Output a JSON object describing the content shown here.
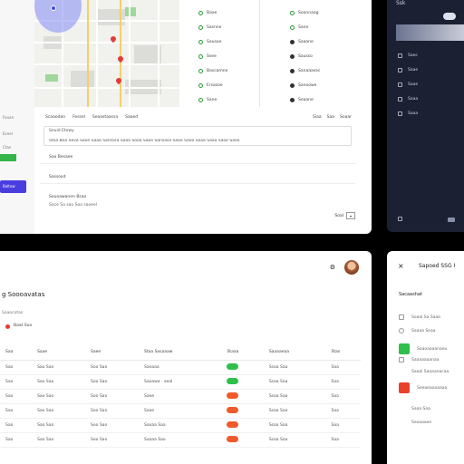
{
  "top_left": {
    "left_strip": {
      "label_1": "Fouan",
      "label_2": "Eceel",
      "label_3": "Ctan",
      "button": "Baltow"
    },
    "map": {
      "description_icon": "map-icon"
    },
    "list_a": [
      "Baae",
      "Sasnne",
      "Sausoe",
      "Ssee",
      "Bascamne",
      "Ersasoe",
      "Sane"
    ],
    "list_b": [
      "Soonnaag",
      "Sane",
      "Saaane",
      "Sausso",
      "Sanaaasec",
      "Sanoowe",
      "Seaane"
    ],
    "form": {
      "tabs": [
        "Scaaodan",
        "Fessel",
        "Seaastaassa",
        "Saaed"
      ],
      "tabs_right": [
        "Siaa",
        "Saa",
        "Soaar"
      ],
      "box_label": "Seuid Etowy",
      "box_text": "Stoa Boa Seva Saoe Saaa Sansara Saaa Sooa Saoo Sansasa Saoo Saoo Saaa Saaa Saoo Saoo",
      "section_1": "Sao Besaee",
      "section_2": "Sassoxd",
      "section_3_title": "Seuoawanen Bsao",
      "section_3_text": "Sace Sa sao Soo saoeel",
      "select_label": "Soal",
      "select_value": "▾"
    }
  },
  "top_right": {
    "logo": "Ssk",
    "items": [
      "Saec",
      "Saae",
      "Saae",
      "Saaa",
      "Saaa"
    ]
  },
  "bottom_left": {
    "title": "g Soooavatas",
    "subtitle": "Saaocotas",
    "filter_label": "Baat Soa",
    "columns": [
      "Saa",
      "Saae",
      "Saee",
      "Staa Sasaaaw",
      "Staaa",
      "Saaaaeaa",
      "Stas"
    ],
    "rows": [
      [
        "Sao",
        "Sao Sao",
        "Soo Sao",
        "Saeaaa",
        "g",
        "Ssaa Saa",
        "Saa"
      ],
      [
        "Sao",
        "Sao Sao",
        "Soo Sao",
        "Saoawa · aeal",
        "g",
        "Ssaa Saa",
        "Saa"
      ],
      [
        "Sao",
        "Sao Sao",
        "Soo Sao",
        "Saee",
        "o",
        "Ssaa Saa",
        "Saa"
      ],
      [
        "Sao",
        "Sao Sao",
        "Soo Sao",
        "Saae",
        "o",
        "Ssaa Saa",
        "Saa"
      ],
      [
        "Sao",
        "Sao Sao",
        "Soo Sao",
        "Saoaa Saa",
        "o",
        "Ssaa Saa",
        "Saa"
      ],
      [
        "Sao",
        "Sao Sao",
        "Soo Sao",
        "Saaaa Sao",
        "o",
        "Ssaa Saa",
        "Saa"
      ]
    ]
  },
  "bottom_right": {
    "close": "×",
    "title": "Sapoed SSG I",
    "subtitle": "Sacaashat",
    "items": [
      "Soaal Sa Saae",
      "Saaaa Seaa",
      "Soaoaaaanaeu",
      "Saaaaaaanaa",
      "Saaai Saaaanacaa",
      "Seeaeaoaaaaa",
      "Saaa Saa",
      "Seoaaaee"
    ]
  },
  "colors": {
    "accent": "#4a3de0",
    "green": "#2fbf4a",
    "orange": "#f05a2b",
    "dark_panel": "#1c2033"
  }
}
